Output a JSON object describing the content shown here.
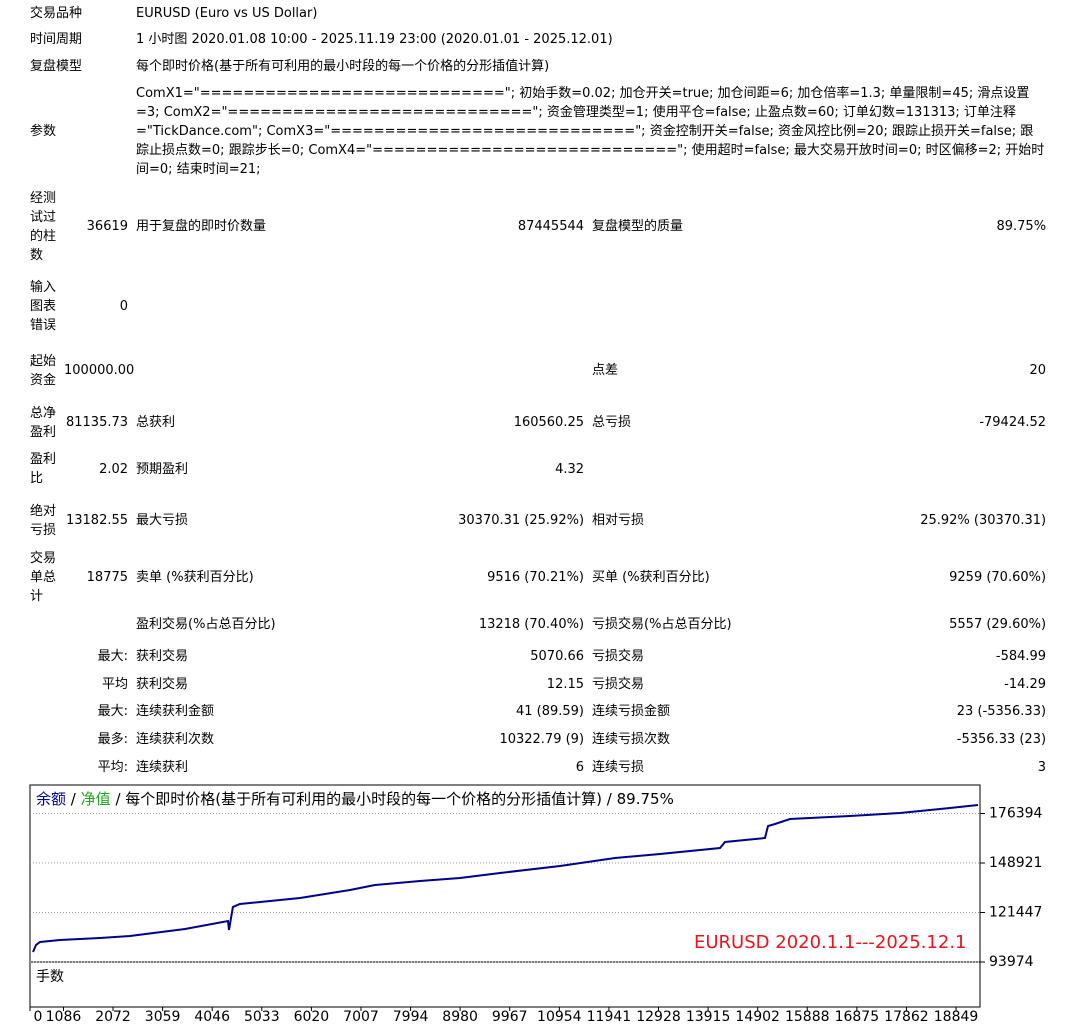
{
  "report": {
    "rows": [
      {
        "label": "交易品种",
        "value": "EURUSD (Euro vs US Dollar)"
      },
      {
        "label": "时间周期",
        "value": "1 小时图 2020.01.08 10:00 - 2025.11.19 23:00 (2020.01.01 - 2025.12.01)"
      },
      {
        "label": "复盘模型",
        "value": "每个即时价格(基于所有可利用的最小时段的每一个价格的分形插值计算)"
      },
      {
        "label": "参数",
        "value": "ComX1=\"============================\"; 初始手数=0.02; 加仓开关=true; 加仓间距=6; 加仓倍率=1.3; 单量限制=45; 滑点设置=3; ComX2=\"============================\"; 资金管理类型=1; 使用平仓=false; 止盈点数=60; 订单幻数=131313; 订单注释=\"TickDance.com\"; ComX3=\"============================\"; 资金控制开关=false; 资金风控比例=20; 跟踪止损开关=false; 跟踪止损点数=0; 跟踪步长=0; ComX4=\"============================\"; 使用超时=false; 最大交易开放时间=0; 时区偏移=2; 开始时间=0; 结束时间=21;"
      }
    ],
    "stats": [
      {
        "label": "经测试过的柱数",
        "value": "36619",
        "label2": "用于复盘的即时价数量",
        "value2": "87445544",
        "label3": "复盘模型的质量",
        "value3": "89.75%"
      },
      {
        "label": "输入图表错误",
        "value": "0"
      },
      {
        "label": "起始资金",
        "value": "100000.00",
        "label3": "点差",
        "value3": "20"
      },
      {
        "label": "总净盈利",
        "value": "81135.73",
        "label2": "总获利",
        "value2": "160560.25",
        "label3": "总亏损",
        "value3": "-79424.52"
      },
      {
        "label": "盈利比",
        "value": "2.02",
        "label2": "预期盈利",
        "value2": "4.32"
      },
      {
        "label": "绝对亏损",
        "value": "13182.55",
        "label2": "最大亏损",
        "value2": "30370.31 (25.92%)",
        "label3": "相对亏损",
        "value3": "25.92% (30370.31)"
      },
      {
        "label": "交易单总计",
        "value": "18775",
        "label2": "卖单 (%获利百分比)",
        "value2": "9516 (70.21%)",
        "label3": "买单 (%获利百分比)",
        "value3": "9259 (70.60%)"
      },
      {
        "label2": "盈利交易(%占总百分比)",
        "value2": "13218 (70.40%)",
        "label3": "亏损交易(%占总百分比)",
        "value3": "5557 (29.60%)"
      },
      {
        "value": "最大:",
        "label2": "获利交易",
        "value2": "5070.66",
        "label3": "亏损交易",
        "value3": "-584.99"
      },
      {
        "value": "平均",
        "label2": "获利交易",
        "value2": "12.15",
        "label3": "亏损交易",
        "value3": "-14.29"
      },
      {
        "value": "最大:",
        "label2": "连续获利金额",
        "value2": "41 (89.59)",
        "label3": "连续亏损金额",
        "value3": "23 (-5356.33)"
      },
      {
        "value": "最多:",
        "label2": "连续获利次数",
        "value2": "10322.79 (9)",
        "label3": "连续亏损次数",
        "value3": "-5356.33 (23)"
      },
      {
        "value": "平均:",
        "label2": "连续获利",
        "value2": "6",
        "label3": "连续亏损",
        "value3": "3"
      }
    ]
  },
  "chart_data": {
    "type": "line",
    "legend": {
      "balance": "余额",
      "equity": "净值",
      "separator": "/",
      "model": "每个即时价格(基于所有可利用的最小时段的每一个价格的分形插值计算)",
      "quality": "89.75%"
    },
    "annotation": "EURUSD 2020.1.1---2025.12.1",
    "lots_label": "手数",
    "x": [
      480,
      539,
      619,
      1017,
      1813,
      2410,
      3504,
      4360,
      4380,
      4458,
      4598,
      5793,
      6788,
      7286,
      8181,
      8977,
      9773,
      10967,
      12062,
      12958,
      14152,
      14251,
      15047,
      15107,
      15246,
      15545,
      16739,
      17734,
      18729,
      19286
    ],
    "series": [
      {
        "name": "余额",
        "color": "#00008b",
        "values": [
          99524,
          103409,
          105074,
          106184,
          107294,
          108404,
          112289,
          116729,
          111734,
          124499,
          126164,
          129494,
          133934,
          136709,
          138929,
          140594,
          143369,
          147254,
          151694,
          153914,
          157244,
          160574,
          162794,
          169454,
          170564,
          173339,
          175004,
          176669,
          179444,
          181136
        ]
      }
    ],
    "xlim": [
      420,
      19326
    ],
    "xticks": [
      0,
      1086,
      2072,
      3059,
      4046,
      5033,
      6020,
      7007,
      7994,
      8980,
      9967,
      10954,
      11941,
      12928,
      13915,
      14902,
      15888,
      16875,
      17862,
      18849
    ],
    "ylim": [
      93974,
      192209
    ],
    "yticks": [
      93974,
      121447,
      148921,
      176394
    ],
    "grid": true
  }
}
